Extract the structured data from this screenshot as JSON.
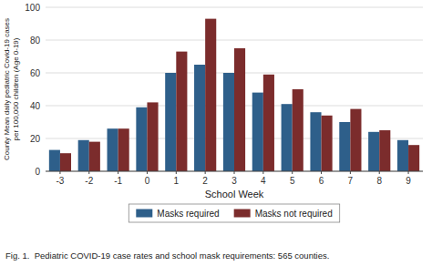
{
  "chart_data": {
    "type": "bar",
    "x_label": "School Week",
    "y_label": "County Mean daily pediatric Covid-19 cases\nper 100,000 children (Age 0-19)",
    "annotations": [
      "Fig. 1.  Pediatric COVID-19 case rates and school mask requirements: 565 counties."
    ],
    "categories": [
      "-3",
      "-2",
      "-1",
      "0",
      "1",
      "2",
      "3",
      "4",
      "5",
      "6",
      "7",
      "8",
      "9"
    ],
    "series": [
      {
        "name": "Masks required",
        "color": "#2e5f8a",
        "values": [
          13,
          19,
          26,
          39,
          60,
          65,
          60,
          48,
          41,
          36,
          30,
          24,
          19
        ]
      },
      {
        "name": "Masks not required",
        "color": "#7b2c2c",
        "values": [
          11,
          18,
          26,
          42,
          73,
          93,
          75,
          59,
          50,
          34,
          38,
          25,
          16
        ]
      }
    ],
    "ylim": [
      0,
      100
    ],
    "yticks": [
      0,
      20,
      40,
      60,
      80,
      100
    ],
    "grid": true,
    "legend": "bottom"
  }
}
